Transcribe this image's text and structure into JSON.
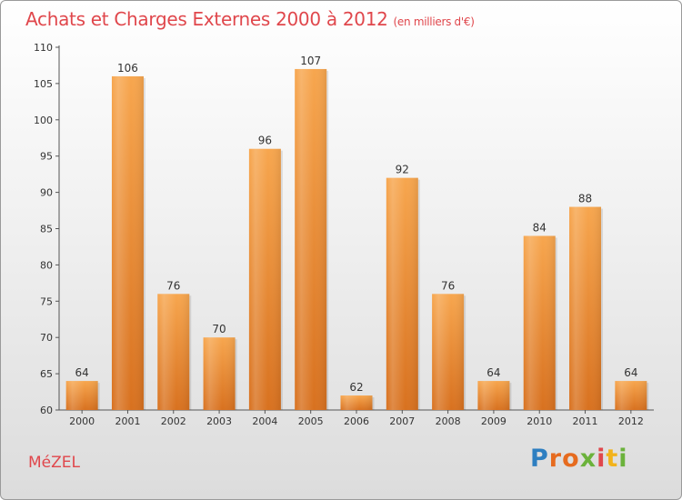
{
  "header": {
    "title": "Achats et Charges Externes 2000 à 2012",
    "unit": "(en milliers d'€)"
  },
  "footer": {
    "commune": "MéZEL",
    "logo_letters": [
      "P",
      "r",
      "o",
      "x",
      "i",
      "t",
      "i"
    ]
  },
  "colors": {
    "title": "#e0474c",
    "bar_light": "#f7a64e",
    "bar_dark": "#d8711f",
    "axis": "#555555"
  },
  "chart_data": {
    "type": "bar",
    "title": "Achats et Charges Externes 2000 à 2012",
    "subtitle": "(en milliers d'€)",
    "xlabel": "",
    "ylabel": "",
    "categories": [
      "2000",
      "2001",
      "2002",
      "2003",
      "2004",
      "2005",
      "2006",
      "2007",
      "2008",
      "2009",
      "2010",
      "2011",
      "2012"
    ],
    "values": [
      64,
      106,
      76,
      70,
      96,
      107,
      62,
      92,
      76,
      64,
      84,
      88,
      64
    ],
    "ylim": [
      60,
      110
    ],
    "yticks": [
      60,
      65,
      70,
      75,
      80,
      85,
      90,
      95,
      100,
      105,
      110
    ],
    "grid": false,
    "data_labels": true
  }
}
